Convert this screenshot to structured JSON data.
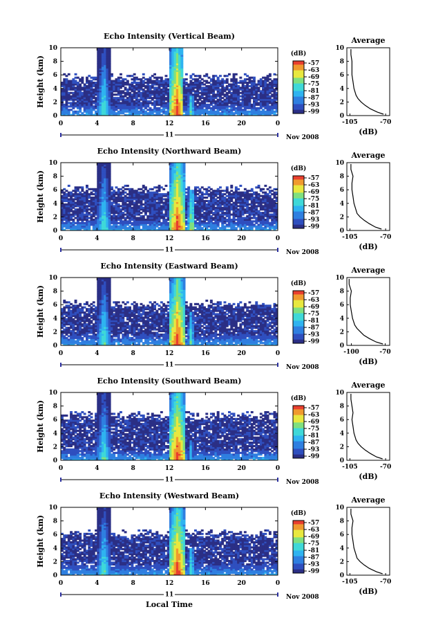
{
  "figure": {
    "xlabel": "Local Time",
    "date_label": "Nov 2008",
    "day_label": "11",
    "ylabel": "Height (km)",
    "colorbar_unit": "(dB)",
    "profile_title": "Average",
    "profile_xlabel": "(dB)"
  },
  "colors": {
    "background_echo": "#2b2f85",
    "colormap": [
      "#2b2f85",
      "#2f4fbf",
      "#2f7fe0",
      "#2fb3f0",
      "#3fd8d8",
      "#7fe07f",
      "#e8e83f",
      "#f09a2f",
      "#e83f2f"
    ]
  },
  "chart_data": [
    {
      "type": "heatmap",
      "title": "Echo Intensity (Vertical Beam)",
      "xlabel": "",
      "ylabel": "Height (km)",
      "x_ticks": [
        "0",
        "4",
        "8",
        "12",
        "16",
        "20",
        "0"
      ],
      "y_ticks": [
        "0",
        "2",
        "4",
        "6",
        "8",
        "10"
      ],
      "xlim": [
        0,
        24
      ],
      "ylim": [
        0,
        10
      ],
      "colorbar_ticks": [
        "-57",
        "-63",
        "-69",
        "-75",
        "-81",
        "-87",
        "-93",
        "-99"
      ],
      "colorbar_range": [
        -99,
        -57
      ],
      "echo_top_km": 5.5,
      "rain_events": [
        {
          "start_hr": 4,
          "end_hr": 5.3,
          "top_km": 10,
          "peak_db": -75
        },
        {
          "start_hr": 12,
          "end_hr": 13.5,
          "top_km": 10,
          "peak_db": -57
        },
        {
          "start_hr": 14,
          "end_hr": 14.6,
          "top_km": 3,
          "peak_db": -75
        }
      ],
      "profile": {
        "title": "Average",
        "xlabel": "(dB)",
        "x_ticks": [
          "-105",
          "-70"
        ],
        "y_ticks": [
          "0",
          "2",
          "4",
          "6",
          "8",
          "10"
        ],
        "xlim": [
          -108,
          -66
        ],
        "ylim": [
          0,
          10
        ],
        "height_km": [
          0.2,
          0.5,
          1,
          1.5,
          2,
          2.5,
          3,
          3.5,
          4,
          5,
          6,
          7,
          8,
          9,
          9.8
        ],
        "avg_db": [
          -72,
          -78,
          -85,
          -90,
          -94,
          -97,
          -99,
          -100,
          -101,
          -102,
          -103,
          -103,
          -103,
          -104,
          -104
        ]
      }
    },
    {
      "type": "heatmap",
      "title": "Echo Intensity (Northward Beam)",
      "xlabel": "",
      "ylabel": "Height (km)",
      "x_ticks": [
        "0",
        "4",
        "8",
        "12",
        "16",
        "20",
        "0"
      ],
      "y_ticks": [
        "0",
        "2",
        "4",
        "6",
        "8",
        "10"
      ],
      "xlim": [
        0,
        24
      ],
      "ylim": [
        0,
        10
      ],
      "colorbar_ticks": [
        "-57",
        "-63",
        "-69",
        "-75",
        "-81",
        "-87",
        "-93",
        "-99"
      ],
      "colorbar_range": [
        -99,
        -57
      ],
      "echo_top_km": 6,
      "rain_events": [
        {
          "start_hr": 4,
          "end_hr": 5.3,
          "top_km": 10,
          "peak_db": -75
        },
        {
          "start_hr": 12,
          "end_hr": 13.6,
          "top_km": 10,
          "peak_db": -57
        },
        {
          "start_hr": 14,
          "end_hr": 14.7,
          "top_km": 6,
          "peak_db": -69
        }
      ],
      "profile": {
        "title": "Average",
        "xlabel": "(dB)",
        "x_ticks": [
          "-105",
          "-70"
        ],
        "y_ticks": [
          "0",
          "2",
          "4",
          "6",
          "8",
          "10"
        ],
        "xlim": [
          -108,
          -66
        ],
        "ylim": [
          0,
          10
        ],
        "height_km": [
          0.2,
          0.5,
          1,
          1.5,
          2,
          2.5,
          3,
          3.5,
          4,
          5,
          6,
          7,
          8,
          9,
          9.8
        ],
        "avg_db": [
          -74,
          -80,
          -86,
          -91,
          -95,
          -98,
          -99,
          -100,
          -101,
          -102,
          -103,
          -103,
          -102,
          -104,
          -104
        ]
      }
    },
    {
      "type": "heatmap",
      "title": "Echo Intensity (Eastward Beam)",
      "xlabel": "",
      "ylabel": "Height (km)",
      "x_ticks": [
        "0",
        "4",
        "8",
        "12",
        "16",
        "20",
        "0"
      ],
      "y_ticks": [
        "0",
        "2",
        "4",
        "6",
        "8",
        "10"
      ],
      "xlim": [
        0,
        24
      ],
      "ylim": [
        0,
        10
      ],
      "colorbar_ticks": [
        "-57",
        "-63",
        "-69",
        "-75",
        "-81",
        "-87",
        "-93",
        "-99"
      ],
      "colorbar_range": [
        -99,
        -57
      ],
      "echo_top_km": 6,
      "rain_events": [
        {
          "start_hr": 4,
          "end_hr": 5.3,
          "top_km": 10,
          "peak_db": -75
        },
        {
          "start_hr": 12,
          "end_hr": 13.6,
          "top_km": 10,
          "peak_db": -57
        },
        {
          "start_hr": 14,
          "end_hr": 14.6,
          "top_km": 5,
          "peak_db": -75
        }
      ],
      "profile": {
        "title": "Average",
        "xlabel": "(dB)",
        "x_ticks": [
          "-100",
          "-70"
        ],
        "y_ticks": [
          "0",
          "2",
          "4",
          "6",
          "8",
          "10"
        ],
        "xlim": [
          -104,
          -66
        ],
        "ylim": [
          0,
          10
        ],
        "height_km": [
          0.2,
          0.5,
          1,
          1.5,
          2,
          2.5,
          3,
          3.5,
          4,
          5,
          6,
          7,
          8,
          9,
          9.8
        ],
        "avg_db": [
          -72,
          -78,
          -84,
          -89,
          -92,
          -95,
          -97,
          -98,
          -99,
          -100,
          -101,
          -101,
          -100,
          -102,
          -102
        ]
      }
    },
    {
      "type": "heatmap",
      "title": "Echo Intensity (Southward Beam)",
      "xlabel": "",
      "ylabel": "Height (km)",
      "x_ticks": [
        "0",
        "4",
        "8",
        "12",
        "16",
        "20",
        "0"
      ],
      "y_ticks": [
        "0",
        "2",
        "4",
        "6",
        "8",
        "10"
      ],
      "xlim": [
        0,
        24
      ],
      "ylim": [
        0,
        10
      ],
      "colorbar_ticks": [
        "-57",
        "-63",
        "-69",
        "-75",
        "-81",
        "-87",
        "-93",
        "-99"
      ],
      "colorbar_range": [
        -99,
        -57
      ],
      "echo_top_km": 6.5,
      "rain_events": [
        {
          "start_hr": 4,
          "end_hr": 5.3,
          "top_km": 10,
          "peak_db": -75
        },
        {
          "start_hr": 12,
          "end_hr": 13.6,
          "top_km": 10,
          "peak_db": -57
        },
        {
          "start_hr": 14,
          "end_hr": 14.6,
          "top_km": 3,
          "peak_db": -81
        }
      ],
      "profile": {
        "title": "Average",
        "xlabel": "(dB)",
        "x_ticks": [
          "-105",
          "-70"
        ],
        "y_ticks": [
          "0",
          "2",
          "4",
          "6",
          "8",
          "10"
        ],
        "xlim": [
          -108,
          -66
        ],
        "ylim": [
          0,
          10
        ],
        "height_km": [
          0.2,
          0.5,
          1,
          1.5,
          2,
          2.5,
          3,
          3.5,
          4,
          5,
          6,
          7,
          8,
          9,
          9.8
        ],
        "avg_db": [
          -73,
          -79,
          -85,
          -90,
          -94,
          -97,
          -99,
          -100,
          -101,
          -102,
          -103,
          -102,
          -103,
          -104,
          -104
        ]
      }
    },
    {
      "type": "heatmap",
      "title": "Echo Intensity (Westward Beam)",
      "xlabel": "Local Time",
      "ylabel": "Height (km)",
      "x_ticks": [
        "0",
        "4",
        "8",
        "12",
        "16",
        "20",
        "0"
      ],
      "y_ticks": [
        "0",
        "2",
        "4",
        "6",
        "8",
        "10"
      ],
      "xlim": [
        0,
        24
      ],
      "ylim": [
        0,
        10
      ],
      "colorbar_ticks": [
        "-57",
        "-63",
        "-69",
        "-75",
        "-81",
        "-87",
        "-93",
        "-99"
      ],
      "colorbar_range": [
        -99,
        -57
      ],
      "echo_top_km": 6,
      "rain_events": [
        {
          "start_hr": 4,
          "end_hr": 5.3,
          "top_km": 10,
          "peak_db": -75
        },
        {
          "start_hr": 12,
          "end_hr": 13.6,
          "top_km": 10,
          "peak_db": -57
        },
        {
          "start_hr": 14,
          "end_hr": 14.6,
          "top_km": 4,
          "peak_db": -75
        }
      ],
      "profile": {
        "title": "Average",
        "xlabel": "(dB)",
        "x_ticks": [
          "-105",
          "-70"
        ],
        "y_ticks": [
          "0",
          "2",
          "4",
          "6",
          "8",
          "10"
        ],
        "xlim": [
          -108,
          -66
        ],
        "ylim": [
          0,
          10
        ],
        "height_km": [
          0.2,
          0.5,
          1,
          1.5,
          2,
          2.5,
          3,
          3.5,
          4,
          5,
          6,
          7,
          8,
          9,
          9.8
        ],
        "avg_db": [
          -73,
          -79,
          -86,
          -91,
          -95,
          -98,
          -99,
          -100,
          -101,
          -102,
          -103,
          -103,
          -102,
          -104,
          -104
        ]
      }
    }
  ]
}
